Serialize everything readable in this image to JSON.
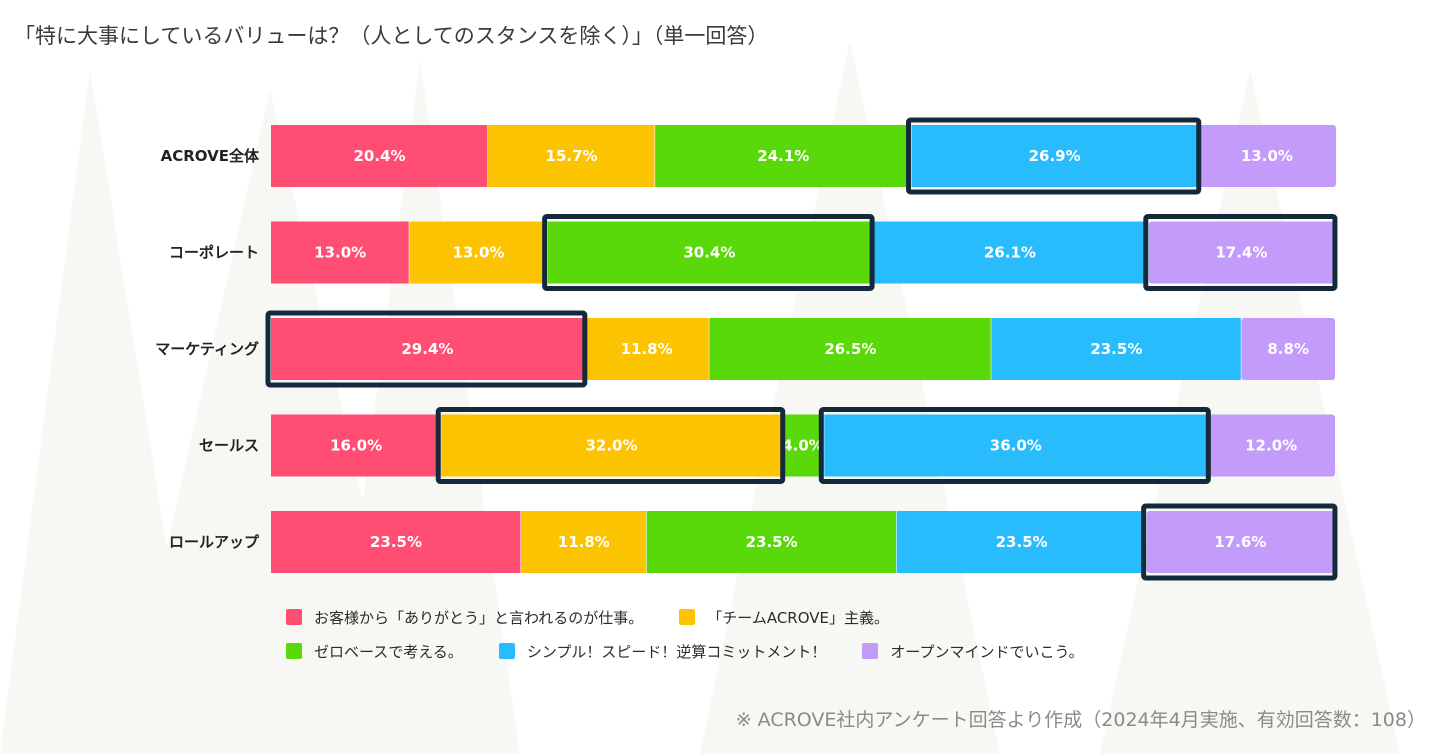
{
  "title": "「特に大事にしているバリューは？（人としてのスタンスを除く）」（単一回答）",
  "footnote": "※ ACROVE社内アンケート回答より作成（2024年4月実施、有効回答数：108）",
  "colors": {
    "pink": "#ff4d73",
    "yellow": "#fcc301",
    "green": "#59d80a",
    "blue": "#29bcfd",
    "purple": "#c39bfa",
    "highlight": "#142a3b"
  },
  "chart_data": {
    "type": "bar",
    "orientation": "horizontal",
    "stacked": true,
    "percent_stacked": true,
    "categories": [
      "ACROVE全体",
      "コーポレート",
      "マーケティング",
      "セールス",
      "ロールアップ"
    ],
    "series": [
      {
        "name": "お客様から「ありがとう」と言われるのが仕事。",
        "color": "#ff4d73",
        "values": [
          20.4,
          13.0,
          29.4,
          16.0,
          23.5
        ],
        "labels": [
          "20.4%",
          "13.0%",
          "29.4%",
          "16.0%",
          "23.5%"
        ]
      },
      {
        "name": "「チームACROVE」主義。",
        "color": "#fcc301",
        "values": [
          15.7,
          13.0,
          11.8,
          32.0,
          11.8
        ],
        "labels": [
          "15.7%",
          "13.0%",
          "11.8%",
          "32.0%",
          "11.8%"
        ]
      },
      {
        "name": "ゼロベースで考える。",
        "color": "#59d80a",
        "values": [
          24.1,
          30.4,
          26.5,
          4.0,
          23.5
        ],
        "labels": [
          "24.1%",
          "30.4%",
          "26.5%",
          "4.0%",
          "23.5%"
        ]
      },
      {
        "name": "シンプル！スピード！逆算コミットメント！",
        "color": "#29bcfd",
        "values": [
          26.9,
          26.1,
          23.5,
          36.0,
          23.5
        ],
        "labels": [
          "26.9%",
          "26.1%",
          "23.5%",
          "36.0%",
          "23.5%"
        ]
      },
      {
        "name": "オープンマインドでいこう。",
        "color": "#c39bfa",
        "values": [
          13.0,
          17.4,
          8.8,
          12.0,
          17.6
        ],
        "labels": [
          "13.0%",
          "17.4%",
          "8.8%",
          "12.0%",
          "17.6%"
        ]
      }
    ],
    "highlighted": [
      {
        "category": "ACROVE全体",
        "series": "シンプル！スピード！逆算コミットメント！"
      },
      {
        "category": "コーポレート",
        "series": "ゼロベースで考える。"
      },
      {
        "category": "コーポレート",
        "series": "オープンマインドでいこう。"
      },
      {
        "category": "マーケティング",
        "series": "お客様から「ありがとう」と言われるのが仕事。"
      },
      {
        "category": "セールス",
        "series": "「チームACROVE」主義。"
      },
      {
        "category": "セールス",
        "series": "シンプル！スピード！逆算コミットメント！"
      },
      {
        "category": "ロールアップ",
        "series": "オープンマインドでいこう。"
      }
    ],
    "xlim": [
      0,
      100
    ],
    "legend_position": "bottom",
    "grid": false
  }
}
